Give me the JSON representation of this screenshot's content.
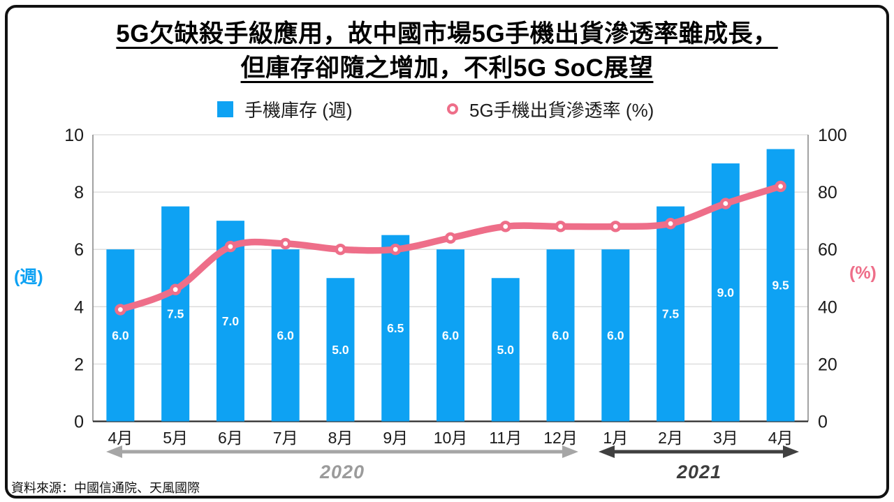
{
  "title": {
    "line1": "5G欠缺殺手級應用，故中國市場5G手機出貨滲透率雖成長，",
    "line2": "但庫存卻隨之增加，不利5G SoC展望"
  },
  "legend": [
    {
      "label": "手機庫存 (週)",
      "marker": "blue-square"
    },
    {
      "label": "5G手機出貨滲透率 (%)",
      "marker": "pink-ring"
    }
  ],
  "axis_units": {
    "left": "(週)",
    "right": "(%)"
  },
  "timeline": {
    "years": [
      {
        "label": "2020",
        "span_categories": [
          "4月",
          "12月"
        ]
      },
      {
        "label": "2021",
        "span_categories": [
          "1月",
          "4月"
        ]
      }
    ]
  },
  "source": "資料來源：中國信通院、天風國際",
  "colors": {
    "bar": "#0ea2f3",
    "line": "#ee6e89",
    "bar_label": "#ffffff",
    "tick_text": "#1a1a1a",
    "month_text": "#1a1a1a",
    "grid": "#d9d9d9",
    "side_axis": "#8a8a8a",
    "baseline": "#2b2b2b",
    "arrow_2020": "#a6a6a6",
    "arrow_2021": "#404040",
    "marker_hole": "#ffffff"
  },
  "chart_data": {
    "type": "bar+line combo",
    "categories": [
      "4月",
      "5月",
      "6月",
      "7月",
      "8月",
      "9月",
      "10月",
      "11月",
      "12月",
      "1月",
      "2月",
      "3月",
      "4月"
    ],
    "series": [
      {
        "name": "手機庫存 (週)",
        "type": "bar",
        "axis": "left",
        "values": [
          6.0,
          7.5,
          7.0,
          6.0,
          5.0,
          6.5,
          6.0,
          5.0,
          6.0,
          6.0,
          7.5,
          9.0,
          9.5
        ],
        "labels": [
          "6.0",
          "7.5",
          "7.0",
          "6.0",
          "5.0",
          "6.5",
          "6.0",
          "5.0",
          "6.0",
          "6.0",
          "7.5",
          "9.0",
          "9.5"
        ]
      },
      {
        "name": "5G手機出貨滲透率 (%)",
        "type": "line",
        "axis": "right",
        "values": [
          39,
          46,
          61,
          62,
          60,
          60,
          64,
          68,
          68,
          68,
          69,
          76,
          82
        ]
      }
    ],
    "left_axis": {
      "label": "(週)",
      "ticks": [
        0,
        2,
        4,
        6,
        8,
        10
      ],
      "range": [
        0,
        10
      ]
    },
    "right_axis": {
      "label": "(%)",
      "ticks": [
        0,
        20,
        40,
        60,
        80,
        100
      ],
      "range": [
        0,
        100
      ]
    },
    "grid": true,
    "legend_position": "top"
  }
}
